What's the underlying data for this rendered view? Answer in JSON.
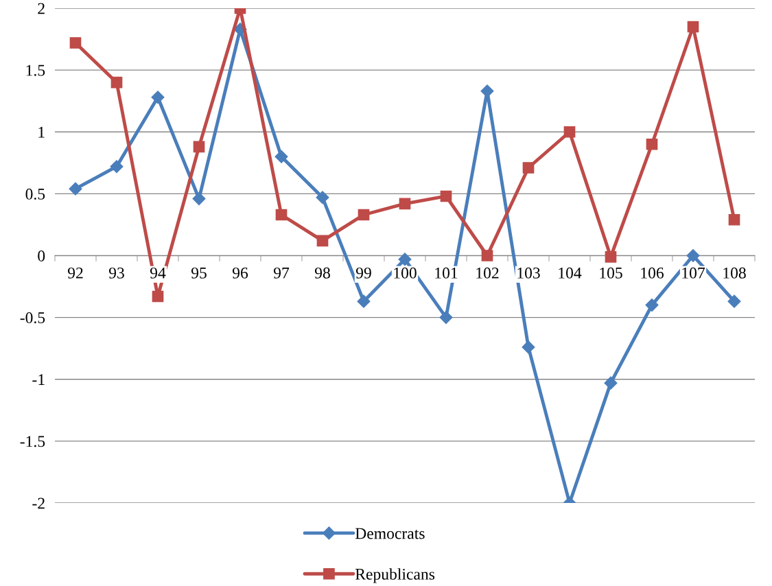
{
  "chart_data": {
    "type": "line",
    "categories": [
      "92",
      "93",
      "94",
      "95",
      "96",
      "97",
      "98",
      "99",
      "100",
      "101",
      "102",
      "103",
      "104",
      "105",
      "106",
      "107",
      "108"
    ],
    "series": [
      {
        "name": "Democrats",
        "color": "#4a7ebb",
        "marker": "diamond",
        "values": [
          0.54,
          0.72,
          1.28,
          0.46,
          1.83,
          0.8,
          0.47,
          -0.37,
          -0.03,
          -0.5,
          1.33,
          -0.74,
          -2,
          -1.03,
          -0.4,
          0,
          -0.37
        ]
      },
      {
        "name": "Republicans",
        "color": "#be4b48",
        "marker": "square",
        "values": [
          1.72,
          1.4,
          -0.33,
          0.88,
          2,
          0.33,
          0.12,
          0.33,
          0.42,
          0.48,
          0,
          0.71,
          1,
          -0.01,
          0.9,
          1.85,
          0.29
        ]
      }
    ],
    "ylim": [
      -2,
      2
    ],
    "yticks": [
      -2,
      -1.5,
      -1,
      -0.5,
      0,
      0.5,
      1,
      1.5,
      2
    ],
    "grid": "y",
    "legend": "bottom",
    "line_style": "solid"
  }
}
